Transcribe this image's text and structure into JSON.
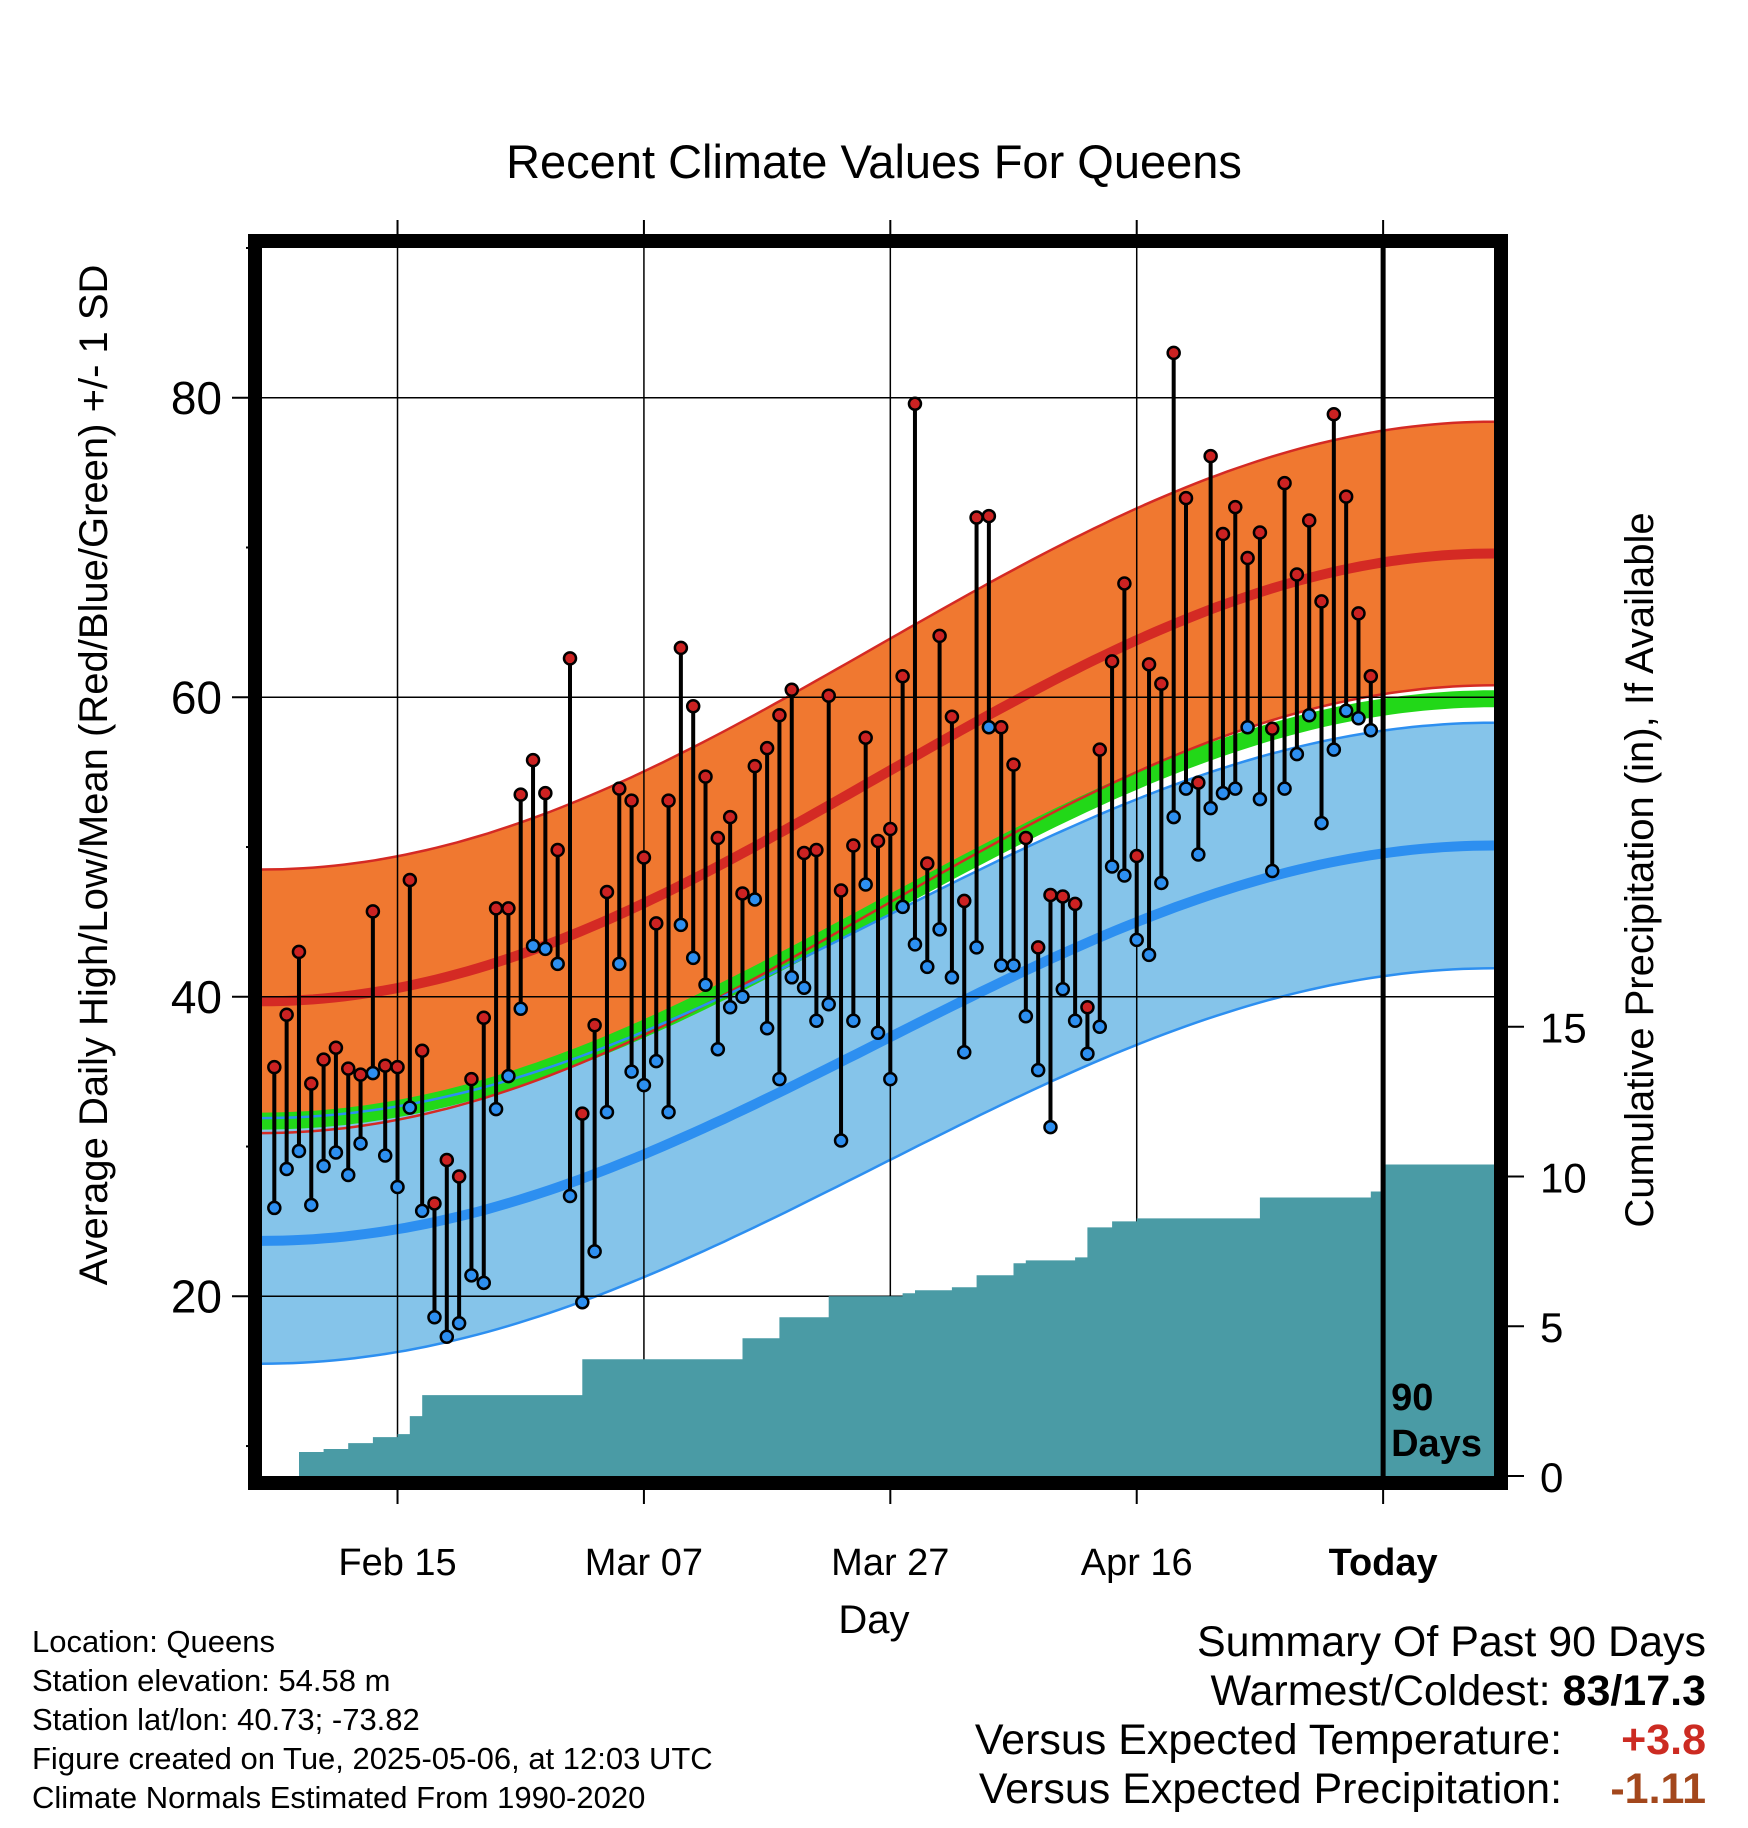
{
  "chart_data": {
    "type": "line",
    "title": "Recent Climate Values For Queens",
    "xlabel": "Day",
    "ylabel_left": "Average Daily High/Low/Mean (Red/Blue/Green) +/- 1 SD",
    "ylabel_right": "Cumulative Precipitation (in), If Available",
    "x_ticks": [
      "Feb 15",
      "Mar 07",
      "Mar 27",
      "Apr 16",
      "Today"
    ],
    "x_range_dates": [
      "2025-02-04",
      "2025-05-15"
    ],
    "today": "2025-05-06",
    "y_left_range": [
      8,
      90
    ],
    "y_left_ticks": [
      20,
      40,
      60,
      80
    ],
    "y_right_range": [
      0,
      41
    ],
    "y_right_ticks": [
      0,
      5,
      10,
      15
    ],
    "grid": true,
    "today_label": [
      "90",
      "Days"
    ],
    "colors": {
      "high_band": "#f07830",
      "high_mean": "#d42a24",
      "low_band": "#85c4ea",
      "low_mean": "#2d8ff0",
      "mean": "#22d818",
      "precip": "#4a9ba5",
      "high_dot": "#cc2222",
      "low_dot": "#2d8ff0"
    },
    "normal_high": {
      "start": 39.7,
      "end": 69.6
    },
    "normal_low": {
      "start": 23.7,
      "end": 50.1
    },
    "normal_high_sd": 8.8,
    "normal_low_sd": 8.2,
    "normal_mean": {
      "start": 31.7,
      "end": 59.9
    },
    "observed": {
      "dates_start": "2025-02-05",
      "high": [
        35.3,
        38.8,
        43,
        34.2,
        35.8,
        36.6,
        35.2,
        34.8,
        45.7,
        35.4,
        35.3,
        47.8,
        36.4,
        26.2,
        29.1,
        28,
        34.5,
        38.6,
        45.9,
        45.9,
        53.5,
        55.8,
        53.6,
        49.8,
        62.6,
        32.2,
        38.1,
        47,
        53.9,
        53.1,
        49.3,
        44.9,
        53.1,
        63.3,
        59.4,
        54.7,
        50.6,
        52,
        46.9,
        55.4,
        56.6,
        58.8,
        60.5,
        49.6,
        49.8,
        60.1,
        47.1,
        50.1,
        57.3,
        50.4,
        51.2,
        61.4,
        79.6,
        48.9,
        64.1,
        58.7,
        46.4,
        72,
        72.1,
        58,
        55.5,
        50.6,
        43.3,
        46.8,
        46.7,
        46.2,
        39.3,
        56.5,
        62.4,
        67.6,
        49.4,
        62.2,
        60.9,
        83,
        73.3,
        54.3,
        76.1,
        70.9,
        72.7,
        69.3,
        71,
        57.9,
        74.3,
        68.2,
        71.8,
        66.4,
        78.9,
        73.4,
        65.6,
        61.4
      ],
      "low": [
        25.9,
        28.5,
        29.7,
        26.1,
        28.7,
        29.6,
        28.1,
        30.2,
        34.9,
        29.4,
        27.3,
        32.6,
        25.7,
        18.6,
        17.3,
        18.2,
        21.4,
        20.9,
        32.5,
        34.7,
        39.2,
        43.4,
        43.2,
        42.2,
        26.7,
        19.6,
        23,
        32.3,
        42.2,
        35,
        34.1,
        35.7,
        32.3,
        44.8,
        42.6,
        40.8,
        36.5,
        39.3,
        40,
        46.5,
        37.9,
        34.5,
        41.3,
        40.6,
        38.4,
        39.5,
        30.4,
        38.4,
        47.5,
        37.6,
        34.5,
        46,
        43.5,
        42,
        44.5,
        41.3,
        36.3,
        43.3,
        58,
        42.1,
        42.1,
        38.7,
        35.1,
        31.3,
        40.5,
        38.4,
        36.2,
        38,
        48.7,
        48.1,
        43.8,
        42.8,
        47.6,
        52,
        53.9,
        49.5,
        52.6,
        53.6,
        53.9,
        58,
        53.2,
        48.4,
        53.9,
        56.2,
        58.8,
        51.6,
        56.5,
        59.1,
        58.6,
        57.8
      ]
    },
    "precip_cumulative": {
      "dates": [
        "2025-02-06",
        "2025-02-07",
        "2025-02-09",
        "2025-02-11",
        "2025-02-13",
        "2025-02-15",
        "2025-02-16",
        "2025-02-17",
        "2025-03-01",
        "2025-03-02",
        "2025-03-14",
        "2025-03-15",
        "2025-03-17",
        "2025-03-18",
        "2025-03-21",
        "2025-03-22",
        "2025-03-25",
        "2025-03-28",
        "2025-03-29",
        "2025-04-01",
        "2025-04-03",
        "2025-04-06",
        "2025-04-07",
        "2025-04-11",
        "2025-04-12",
        "2025-04-14",
        "2025-04-16",
        "2025-04-25",
        "2025-04-26",
        "2025-05-04",
        "2025-05-05",
        "2025-05-06",
        "2025-05-15"
      ],
      "values": [
        0,
        0.8,
        0.9,
        1.1,
        1.3,
        1.4,
        2.0,
        2.7,
        2.7,
        3.9,
        3.9,
        4.6,
        4.6,
        5.3,
        5.3,
        6.0,
        6.0,
        6.1,
        6.2,
        6.3,
        6.7,
        7.1,
        7.2,
        7.3,
        8.3,
        8.5,
        8.6,
        8.6,
        9.3,
        9.3,
        9.5,
        10.4,
        10.4
      ]
    }
  },
  "info": {
    "location": "Location: Queens",
    "elevation": "Station elevation: 54.58 m",
    "latlon": "Station lat/lon: 40.73; -73.82",
    "created": "Figure created on Tue, 2025-05-06, at 12:03 UTC",
    "normals": "Climate Normals Estimated From 1990-2020"
  },
  "summary": {
    "title": "Summary Of Past 90 Days",
    "warmest_label": "Warmest/Coldest:",
    "warmest_value": "83/17.3",
    "temp_label": "Versus Expected Temperature:",
    "temp_value": "+3.8",
    "precip_label": "Versus Expected Precipitation:",
    "precip_value": "-1.11"
  }
}
